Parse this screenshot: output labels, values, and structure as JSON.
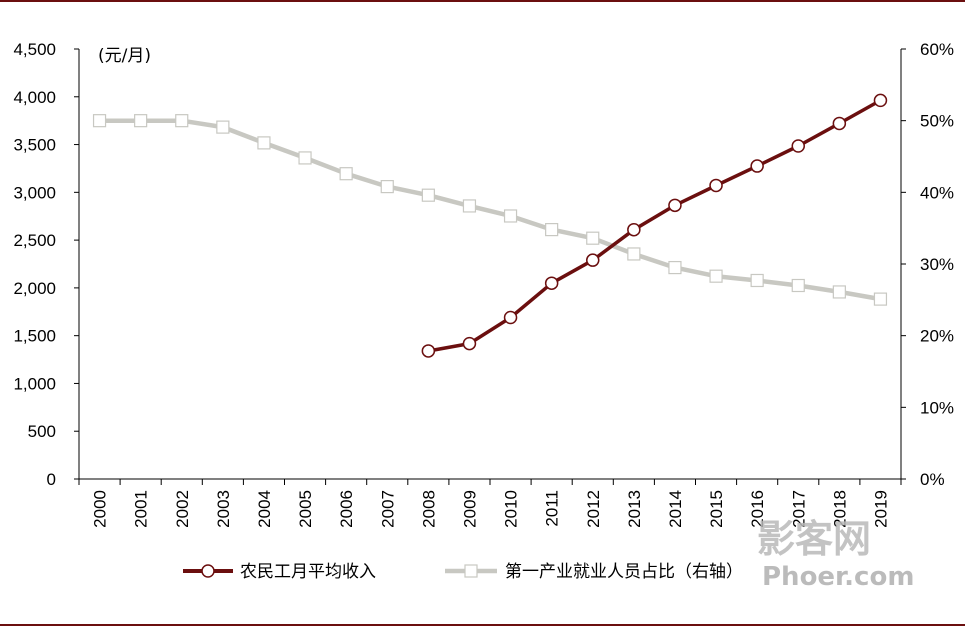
{
  "colors": {
    "income": "#6b0f0f",
    "share": "#c8c8c2",
    "axis": "#000000",
    "rule": "#6b0f0f"
  },
  "chart_data": {
    "type": "line",
    "x": [
      "2000",
      "2001",
      "2002",
      "2003",
      "2004",
      "2005",
      "2006",
      "2007",
      "2008",
      "2009",
      "2010",
      "2011",
      "2012",
      "2013",
      "2014",
      "2015",
      "2016",
      "2017",
      "2018",
      "2019"
    ],
    "left_axis": {
      "unit": "(元/月)",
      "ylim": [
        0,
        4500
      ],
      "ticks": [
        0,
        500,
        1000,
        1500,
        2000,
        2500,
        3000,
        3500,
        4000,
        4500
      ],
      "tick_labels": [
        "0",
        "500",
        "1,000",
        "1,500",
        "2,000",
        "2,500",
        "3,000",
        "3,500",
        "4,000",
        "4,500"
      ]
    },
    "right_axis": {
      "ylim": [
        0,
        60
      ],
      "ticks": [
        0,
        10,
        20,
        30,
        40,
        50,
        60
      ],
      "tick_labels": [
        "0%",
        "10%",
        "20%",
        "30%",
        "40%",
        "50%",
        "60%"
      ]
    },
    "series": [
      {
        "name": "农民工月平均收入",
        "axis": "left",
        "marker": "circle",
        "values": [
          null,
          null,
          null,
          null,
          null,
          null,
          null,
          null,
          1340,
          1417,
          1690,
          2049,
          2290,
          2609,
          2864,
          3072,
          3275,
          3485,
          3721,
          3962
        ]
      },
      {
        "name": "第一产业就业人员占比（右轴）",
        "axis": "right",
        "marker": "square",
        "values": [
          50.0,
          50.0,
          50.0,
          49.1,
          46.9,
          44.8,
          42.6,
          40.8,
          39.6,
          38.1,
          36.7,
          34.8,
          33.6,
          31.4,
          29.5,
          28.3,
          27.7,
          27.0,
          26.1,
          25.1
        ]
      }
    ],
    "legend_placement": "bottom"
  },
  "watermark": {
    "chinese": "影客网",
    "english": "Phoer.com"
  }
}
